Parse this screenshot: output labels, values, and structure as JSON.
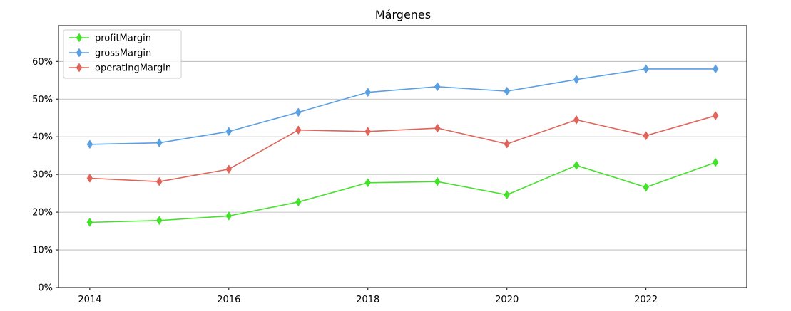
{
  "chart_data": {
    "type": "line",
    "title": "Márgenes",
    "xlabel": "",
    "ylabel": "",
    "x": [
      2014,
      2015,
      2016,
      2017,
      2018,
      2019,
      2020,
      2021,
      2022,
      2023
    ],
    "x_ticks": [
      2014,
      2016,
      2018,
      2020,
      2022
    ],
    "x_tick_labels": [
      "2014",
      "2016",
      "2018",
      "2020",
      "2022"
    ],
    "xlim": [
      2013.55,
      2023.45
    ],
    "y_ticks": [
      0,
      10,
      20,
      30,
      40,
      50,
      60
    ],
    "y_tick_labels": [
      "0%",
      "10%",
      "20%",
      "30%",
      "40%",
      "50%",
      "60%"
    ],
    "ylim": [
      0,
      69.5
    ],
    "grid": "horizontal",
    "legend_position": "top-left",
    "series": [
      {
        "name": "profitMargin",
        "color": "#44e12b",
        "marker": "diamond",
        "values": [
          17.3,
          17.8,
          19.0,
          22.7,
          27.8,
          28.1,
          24.6,
          32.4,
          26.6,
          33.2
        ]
      },
      {
        "name": "grossMargin",
        "color": "#5b9fe3",
        "marker": "diamond",
        "values": [
          38.0,
          38.4,
          41.4,
          46.5,
          51.8,
          53.3,
          52.1,
          55.2,
          58.0,
          58.0
        ]
      },
      {
        "name": "operatingMargin",
        "color": "#e06459",
        "marker": "diamond",
        "values": [
          29.0,
          28.1,
          31.4,
          41.8,
          41.4,
          42.3,
          38.1,
          44.5,
          40.3,
          45.6
        ]
      }
    ]
  }
}
